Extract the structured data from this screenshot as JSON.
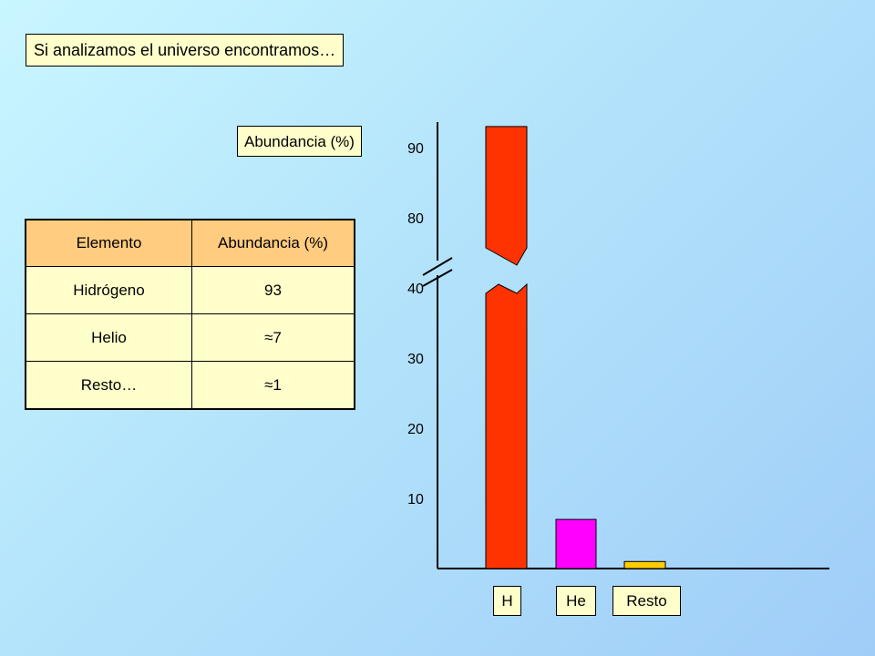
{
  "header": {
    "title": "Si analizamos el universo encontramos…"
  },
  "table": {
    "headers": [
      "Elemento",
      "Abundancia (%)"
    ],
    "rows": [
      [
        "Hidrógeno",
        "93"
      ],
      [
        "Helio",
        "≈7"
      ],
      [
        "Resto…",
        "≈1"
      ]
    ]
  },
  "chart_data": {
    "type": "bar",
    "ylabel": "Abundancia (%)",
    "categories": [
      "H",
      "He",
      "Resto"
    ],
    "values": [
      93,
      7,
      1
    ],
    "yticks": [
      10,
      20,
      30,
      40,
      80,
      90
    ],
    "y_axis_break": [
      40,
      80
    ],
    "colors": [
      "#ff3300",
      "#ff00ff",
      "#ffcc00"
    ],
    "grid": false
  }
}
